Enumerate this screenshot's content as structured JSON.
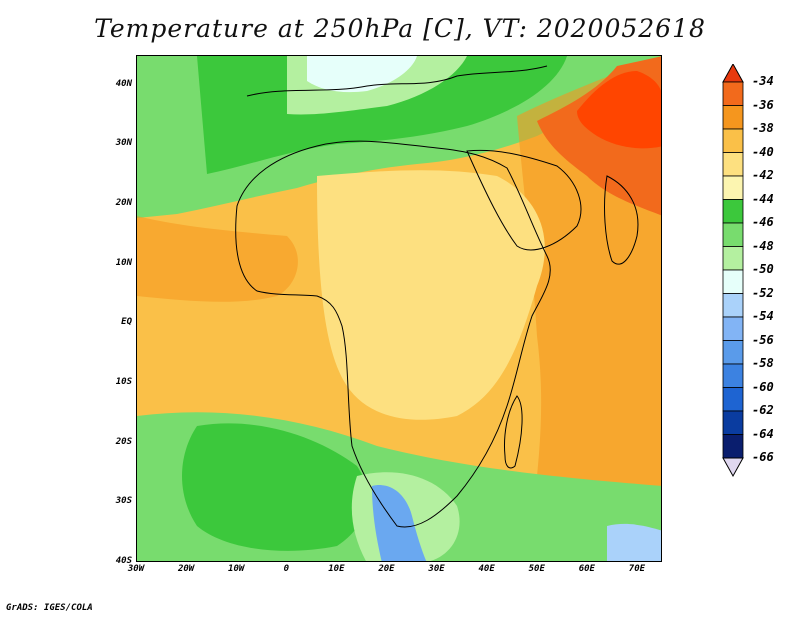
{
  "title": "Temperature at 250hPa [C], VT: 2020052618",
  "credit": "GrADS: IGES/COLA",
  "map": {
    "lon_range": [
      -30,
      75
    ],
    "lat_range": [
      -40,
      45
    ],
    "lat_labels": [
      "40N",
      "30N",
      "20N",
      "10N",
      "EQ",
      "10S",
      "20S",
      "30S",
      "40S"
    ],
    "lat_values": [
      40,
      30,
      20,
      10,
      0,
      -10,
      -20,
      -30,
      -40
    ],
    "lon_labels": [
      "30W",
      "20W",
      "10W",
      "0",
      "10E",
      "20E",
      "30E",
      "40E",
      "50E",
      "60E",
      "70E"
    ],
    "lon_values": [
      -30,
      -20,
      -10,
      0,
      10,
      20,
      30,
      40,
      50,
      60,
      70
    ]
  },
  "colorbar": {
    "labels": [
      "-34",
      "-36",
      "-38",
      "-40",
      "-42",
      "-44",
      "-46",
      "-48",
      "-50",
      "-52",
      "-54",
      "-56",
      "-58",
      "-60",
      "-62",
      "-64",
      "-66"
    ],
    "colors": [
      "#ff4500",
      "#f26a1c",
      "#f5961e",
      "#fac048",
      "#fde080",
      "#fcf5b0",
      "#3cc83c",
      "#78dc6e",
      "#b4f0a0",
      "#e6fffa",
      "#aad2fa",
      "#82b4f5",
      "#5a9bea",
      "#3c82e1",
      "#1e64d2",
      "#0a3ca0",
      "#0a1e6e"
    ],
    "top_triangle": "#e8390e",
    "bottom_triangle": "#e0d8f0"
  },
  "regions": {
    "south_cold_blue": "#6aa8f0",
    "outline": "#000000"
  }
}
